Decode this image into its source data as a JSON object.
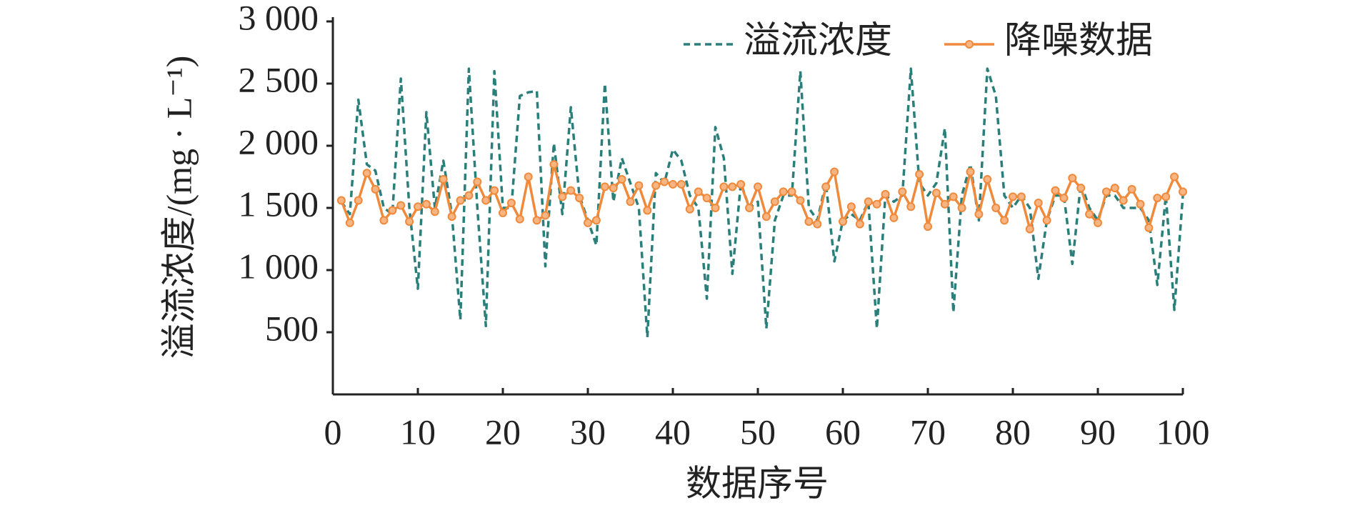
{
  "chart_data": {
    "type": "line",
    "xlabel": "数据序号",
    "ylabel": "溢流浓度/(mg · L⁻¹)",
    "legend": "upper right",
    "xlim": [
      0,
      100
    ],
    "ylim": [
      0,
      3000
    ],
    "xticks": [
      0,
      10,
      20,
      30,
      40,
      50,
      60,
      70,
      80,
      90,
      100
    ],
    "yticks": [
      500,
      {
        "value": 1000,
        "label": "1 000"
      },
      {
        "value": 1500,
        "label": "1 500"
      },
      {
        "value": 2000,
        "label": "2 000"
      },
      {
        "value": 2500,
        "label": "2 500"
      },
      {
        "value": 3000,
        "label": "3 000"
      }
    ],
    "x": [
      1,
      2,
      3,
      4,
      5,
      6,
      7,
      8,
      9,
      10,
      11,
      12,
      13,
      14,
      15,
      16,
      17,
      18,
      19,
      20,
      21,
      22,
      23,
      24,
      25,
      26,
      27,
      28,
      29,
      30,
      31,
      32,
      33,
      34,
      35,
      36,
      37,
      38,
      39,
      40,
      41,
      42,
      43,
      44,
      45,
      46,
      47,
      48,
      49,
      50,
      51,
      52,
      53,
      54,
      55,
      56,
      57,
      58,
      59,
      60,
      61,
      62,
      63,
      64,
      65,
      66,
      67,
      68,
      69,
      70,
      71,
      72,
      73,
      74,
      75,
      76,
      77,
      78,
      79,
      80,
      81,
      82,
      83,
      84,
      85,
      86,
      87,
      88,
      89,
      90,
      91,
      92,
      93,
      94,
      95,
      96,
      97,
      98,
      99,
      100
    ],
    "series": [
      {
        "name": "溢流浓度",
        "color": "#2a7f7a",
        "style": "dashed",
        "markers": false,
        "values": [
          1550,
          1450,
          2370,
          1850,
          1800,
          1500,
          1450,
          2540,
          1500,
          850,
          2270,
          1500,
          1880,
          1450,
          600,
          2620,
          1500,
          550,
          2600,
          1500,
          1500,
          2400,
          2430,
          2440,
          1030,
          2020,
          1450,
          2310,
          1600,
          1400,
          1200,
          2500,
          1550,
          1900,
          1700,
          1500,
          460,
          1780,
          1700,
          1970,
          1880,
          1600,
          1500,
          770,
          2150,
          1900,
          970,
          1700,
          1500,
          1550,
          530,
          1400,
          1600,
          1600,
          2600,
          1500,
          1400,
          1700,
          1070,
          1400,
          1450,
          1400,
          1550,
          530,
          1600,
          1550,
          1600,
          2620,
          1700,
          1600,
          1700,
          2140,
          660,
          1600,
          1850,
          1400,
          2620,
          2400,
          1600,
          1500,
          1600,
          1500,
          930,
          1400,
          1600,
          1600,
          1050,
          1700,
          1500,
          1400,
          1600,
          1600,
          1500,
          1500,
          1500,
          1400,
          880,
          1600,
          680,
          1600
        ]
      },
      {
        "name": "降噪数据",
        "color": "#ef8a3c",
        "style": "solid",
        "markers": true,
        "values": [
          1560,
          1380,
          1560,
          1780,
          1650,
          1400,
          1480,
          1520,
          1390,
          1510,
          1530,
          1470,
          1730,
          1430,
          1560,
          1600,
          1710,
          1560,
          1640,
          1460,
          1540,
          1410,
          1750,
          1400,
          1440,
          1850,
          1590,
          1640,
          1580,
          1380,
          1400,
          1670,
          1660,
          1730,
          1550,
          1680,
          1480,
          1680,
          1710,
          1690,
          1690,
          1490,
          1630,
          1580,
          1500,
          1670,
          1670,
          1690,
          1500,
          1670,
          1430,
          1550,
          1630,
          1630,
          1560,
          1390,
          1370,
          1670,
          1790,
          1390,
          1510,
          1370,
          1550,
          1530,
          1610,
          1420,
          1630,
          1510,
          1770,
          1350,
          1620,
          1530,
          1590,
          1500,
          1790,
          1450,
          1730,
          1500,
          1400,
          1590,
          1590,
          1330,
          1540,
          1400,
          1640,
          1580,
          1740,
          1660,
          1450,
          1380,
          1630,
          1660,
          1560,
          1650,
          1530,
          1340,
          1580,
          1590,
          1750,
          1630
        ]
      }
    ]
  }
}
